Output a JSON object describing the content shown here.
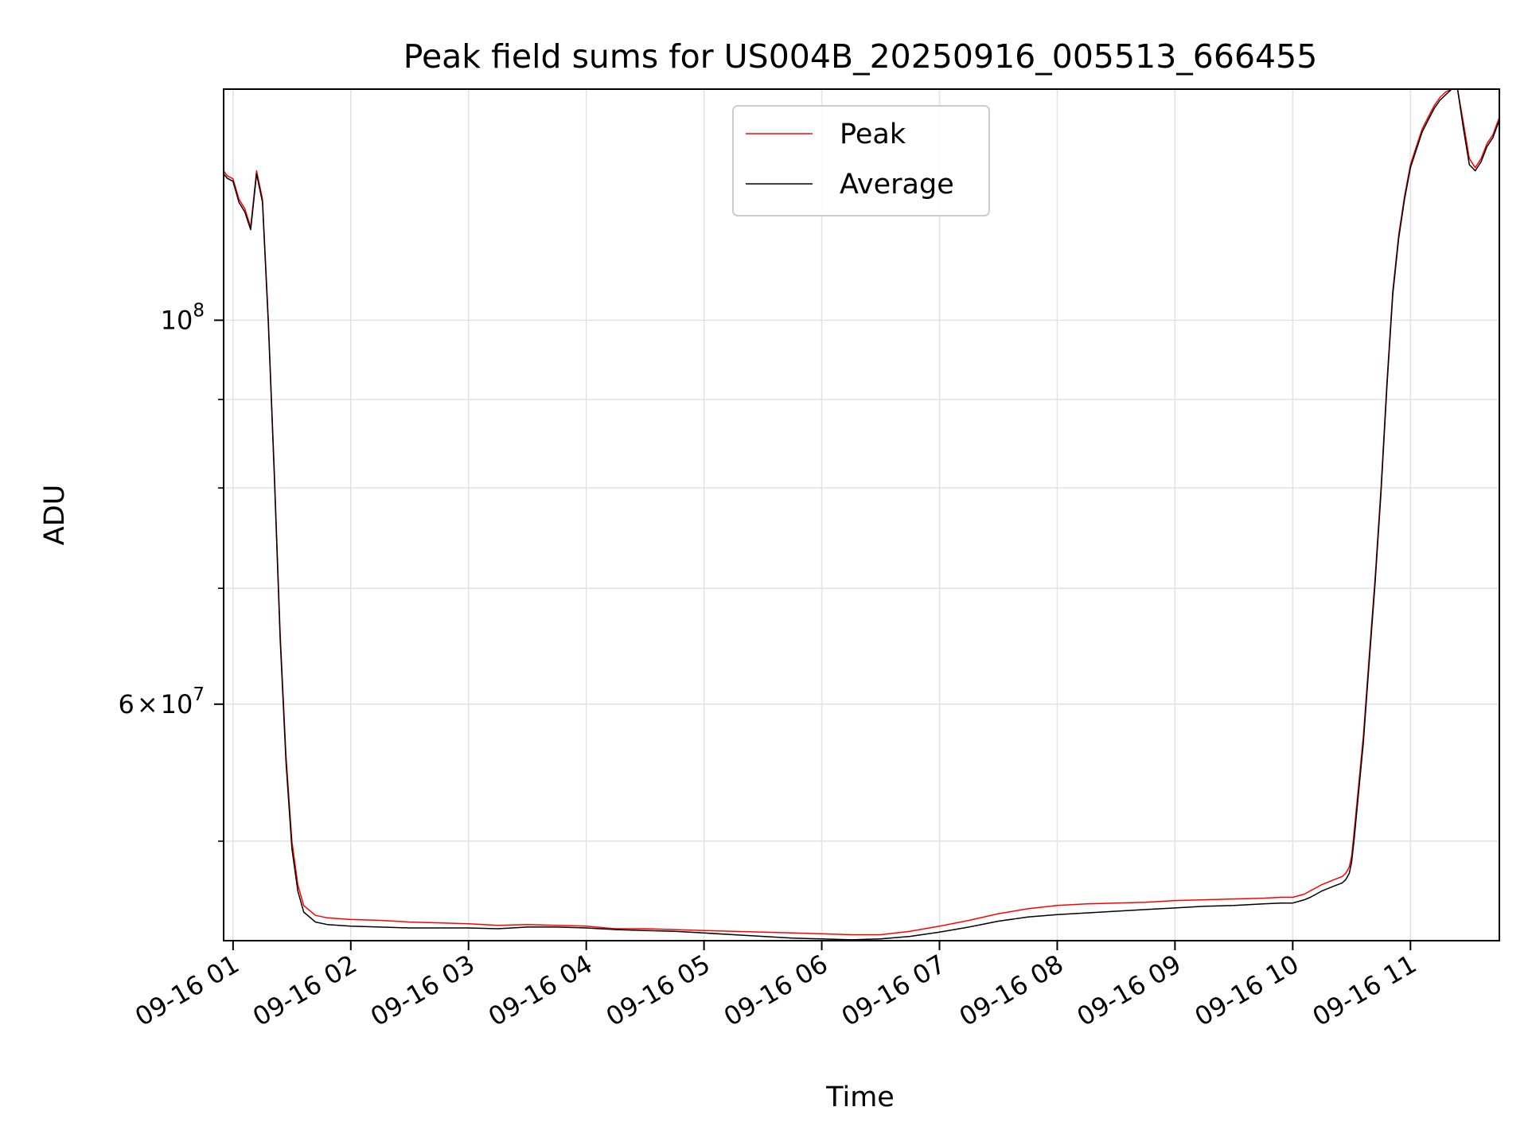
{
  "chart_data": {
    "type": "line",
    "title": "Peak field sums for US004B_20250916_005513_666455",
    "xlabel": "Time",
    "ylabel": "ADU",
    "yscale": "log",
    "xlim": [
      0.92,
      11.755
    ],
    "ylim": [
      43800000,
      136000000
    ],
    "grid": true,
    "legend_location": "upper center",
    "x_ticks": [
      {
        "value": 1,
        "label": "09-16 01"
      },
      {
        "value": 2,
        "label": "09-16 02"
      },
      {
        "value": 3,
        "label": "09-16 03"
      },
      {
        "value": 4,
        "label": "09-16 04"
      },
      {
        "value": 5,
        "label": "09-16 05"
      },
      {
        "value": 6,
        "label": "09-16 06"
      },
      {
        "value": 7,
        "label": "09-16 07"
      },
      {
        "value": 8,
        "label": "09-16 08"
      },
      {
        "value": 9,
        "label": "09-16 09"
      },
      {
        "value": 10,
        "label": "09-16 10"
      },
      {
        "value": 11,
        "label": "09-16 11"
      }
    ],
    "y_major_ticks": [
      {
        "value": 100000000,
        "base": "10",
        "exp": "8"
      },
      {
        "value": 60000000,
        "mant": "6",
        "times": "×",
        "base": "10",
        "exp": "7"
      }
    ],
    "y_minor_ticks": [
      50000000,
      70000000,
      80000000,
      90000000
    ],
    "series": [
      {
        "name": "Peak",
        "color": "#ff0000",
        "x": [
          0.92,
          0.95,
          1.0,
          1.05,
          1.1,
          1.15,
          1.2,
          1.25,
          1.3,
          1.35,
          1.4,
          1.45,
          1.5,
          1.55,
          1.6,
          1.7,
          1.8,
          1.9,
          2.0,
          2.25,
          2.5,
          2.75,
          3.0,
          3.25,
          3.5,
          3.75,
          4.0,
          4.25,
          4.5,
          4.75,
          5.0,
          5.25,
          5.5,
          5.75,
          6.0,
          6.25,
          6.5,
          6.75,
          7.0,
          7.25,
          7.5,
          7.75,
          8.0,
          8.25,
          8.5,
          8.75,
          9.0,
          9.25,
          9.5,
          9.75,
          9.9,
          10.0,
          10.05,
          10.1,
          10.15,
          10.2,
          10.25,
          10.3,
          10.35,
          10.42,
          10.45,
          10.48,
          10.5,
          10.52,
          10.55,
          10.6,
          10.65,
          10.7,
          10.75,
          10.8,
          10.85,
          10.9,
          10.95,
          11.0,
          11.05,
          11.1,
          11.15,
          11.2,
          11.25,
          11.3,
          11.35,
          11.4,
          11.45,
          11.5,
          11.55,
          11.6,
          11.65,
          11.7,
          11.755
        ],
        "y": [
          122000000,
          121200000,
          120700000,
          117500000,
          116000000,
          113200000,
          122000000,
          117500000,
          100000000,
          82000000,
          66000000,
          56000000,
          50000000,
          47200000,
          45900000,
          45300000,
          45150000,
          45100000,
          45050000,
          45000000,
          44900000,
          44850000,
          44800000,
          44700000,
          44750000,
          44700000,
          44650000,
          44500000,
          44500000,
          44450000,
          44400000,
          44350000,
          44300000,
          44250000,
          44200000,
          44150000,
          44150000,
          44350000,
          44650000,
          45000000,
          45400000,
          45700000,
          45900000,
          46000000,
          46050000,
          46100000,
          46200000,
          46250000,
          46300000,
          46350000,
          46400000,
          46400000,
          46500000,
          46600000,
          46800000,
          47000000,
          47200000,
          47350000,
          47500000,
          47700000,
          47900000,
          48300000,
          49000000,
          50500000,
          53000000,
          57500000,
          64000000,
          71000000,
          80000000,
          92000000,
          104000000,
          112000000,
          118000000,
          123000000,
          126000000,
          129000000,
          131000000,
          133000000,
          134500000,
          135500000,
          136000000,
          136000000,
          130000000,
          124000000,
          122500000,
          124000000,
          126500000,
          128000000,
          131000000
        ]
      },
      {
        "name": "Average",
        "color": "#000000",
        "x": [
          0.92,
          0.95,
          1.0,
          1.05,
          1.1,
          1.15,
          1.2,
          1.25,
          1.3,
          1.35,
          1.4,
          1.45,
          1.5,
          1.55,
          1.6,
          1.7,
          1.8,
          1.9,
          2.0,
          2.25,
          2.5,
          2.75,
          3.0,
          3.25,
          3.5,
          3.75,
          4.0,
          4.25,
          4.5,
          4.75,
          5.0,
          5.25,
          5.5,
          5.75,
          6.0,
          6.25,
          6.5,
          6.75,
          7.0,
          7.25,
          7.5,
          7.75,
          8.0,
          8.25,
          8.5,
          8.75,
          9.0,
          9.25,
          9.5,
          9.75,
          9.9,
          10.0,
          10.05,
          10.1,
          10.15,
          10.2,
          10.25,
          10.3,
          10.35,
          10.42,
          10.45,
          10.48,
          10.5,
          10.52,
          10.55,
          10.6,
          10.65,
          10.7,
          10.75,
          10.8,
          10.85,
          10.9,
          10.95,
          11.0,
          11.05,
          11.1,
          11.15,
          11.2,
          11.25,
          11.3,
          11.35,
          11.4,
          11.45,
          11.5,
          11.55,
          11.6,
          11.65,
          11.7,
          11.755
        ],
        "y": [
          121500000,
          120800000,
          120300000,
          117000000,
          115500000,
          112800000,
          121500000,
          117000000,
          99500000,
          81500000,
          65500000,
          55500000,
          49500000,
          46800000,
          45500000,
          44900000,
          44750000,
          44700000,
          44650000,
          44600000,
          44550000,
          44550000,
          44550000,
          44500000,
          44600000,
          44600000,
          44550000,
          44450000,
          44400000,
          44350000,
          44250000,
          44150000,
          44050000,
          43950000,
          43900000,
          43850000,
          43900000,
          44050000,
          44300000,
          44600000,
          44950000,
          45200000,
          45350000,
          45450000,
          45550000,
          45650000,
          45750000,
          45850000,
          45900000,
          46000000,
          46050000,
          46050000,
          46150000,
          46250000,
          46400000,
          46600000,
          46800000,
          46950000,
          47100000,
          47300000,
          47500000,
          47900000,
          48600000,
          50000000,
          52500000,
          57000000,
          63500000,
          70500000,
          79500000,
          91500000,
          103500000,
          111500000,
          117500000,
          122500000,
          125500000,
          128500000,
          130500000,
          132500000,
          134000000,
          135000000,
          136000000,
          136000000,
          129000000,
          123000000,
          122000000,
          123500000,
          126000000,
          127500000,
          130500000
        ]
      }
    ]
  }
}
